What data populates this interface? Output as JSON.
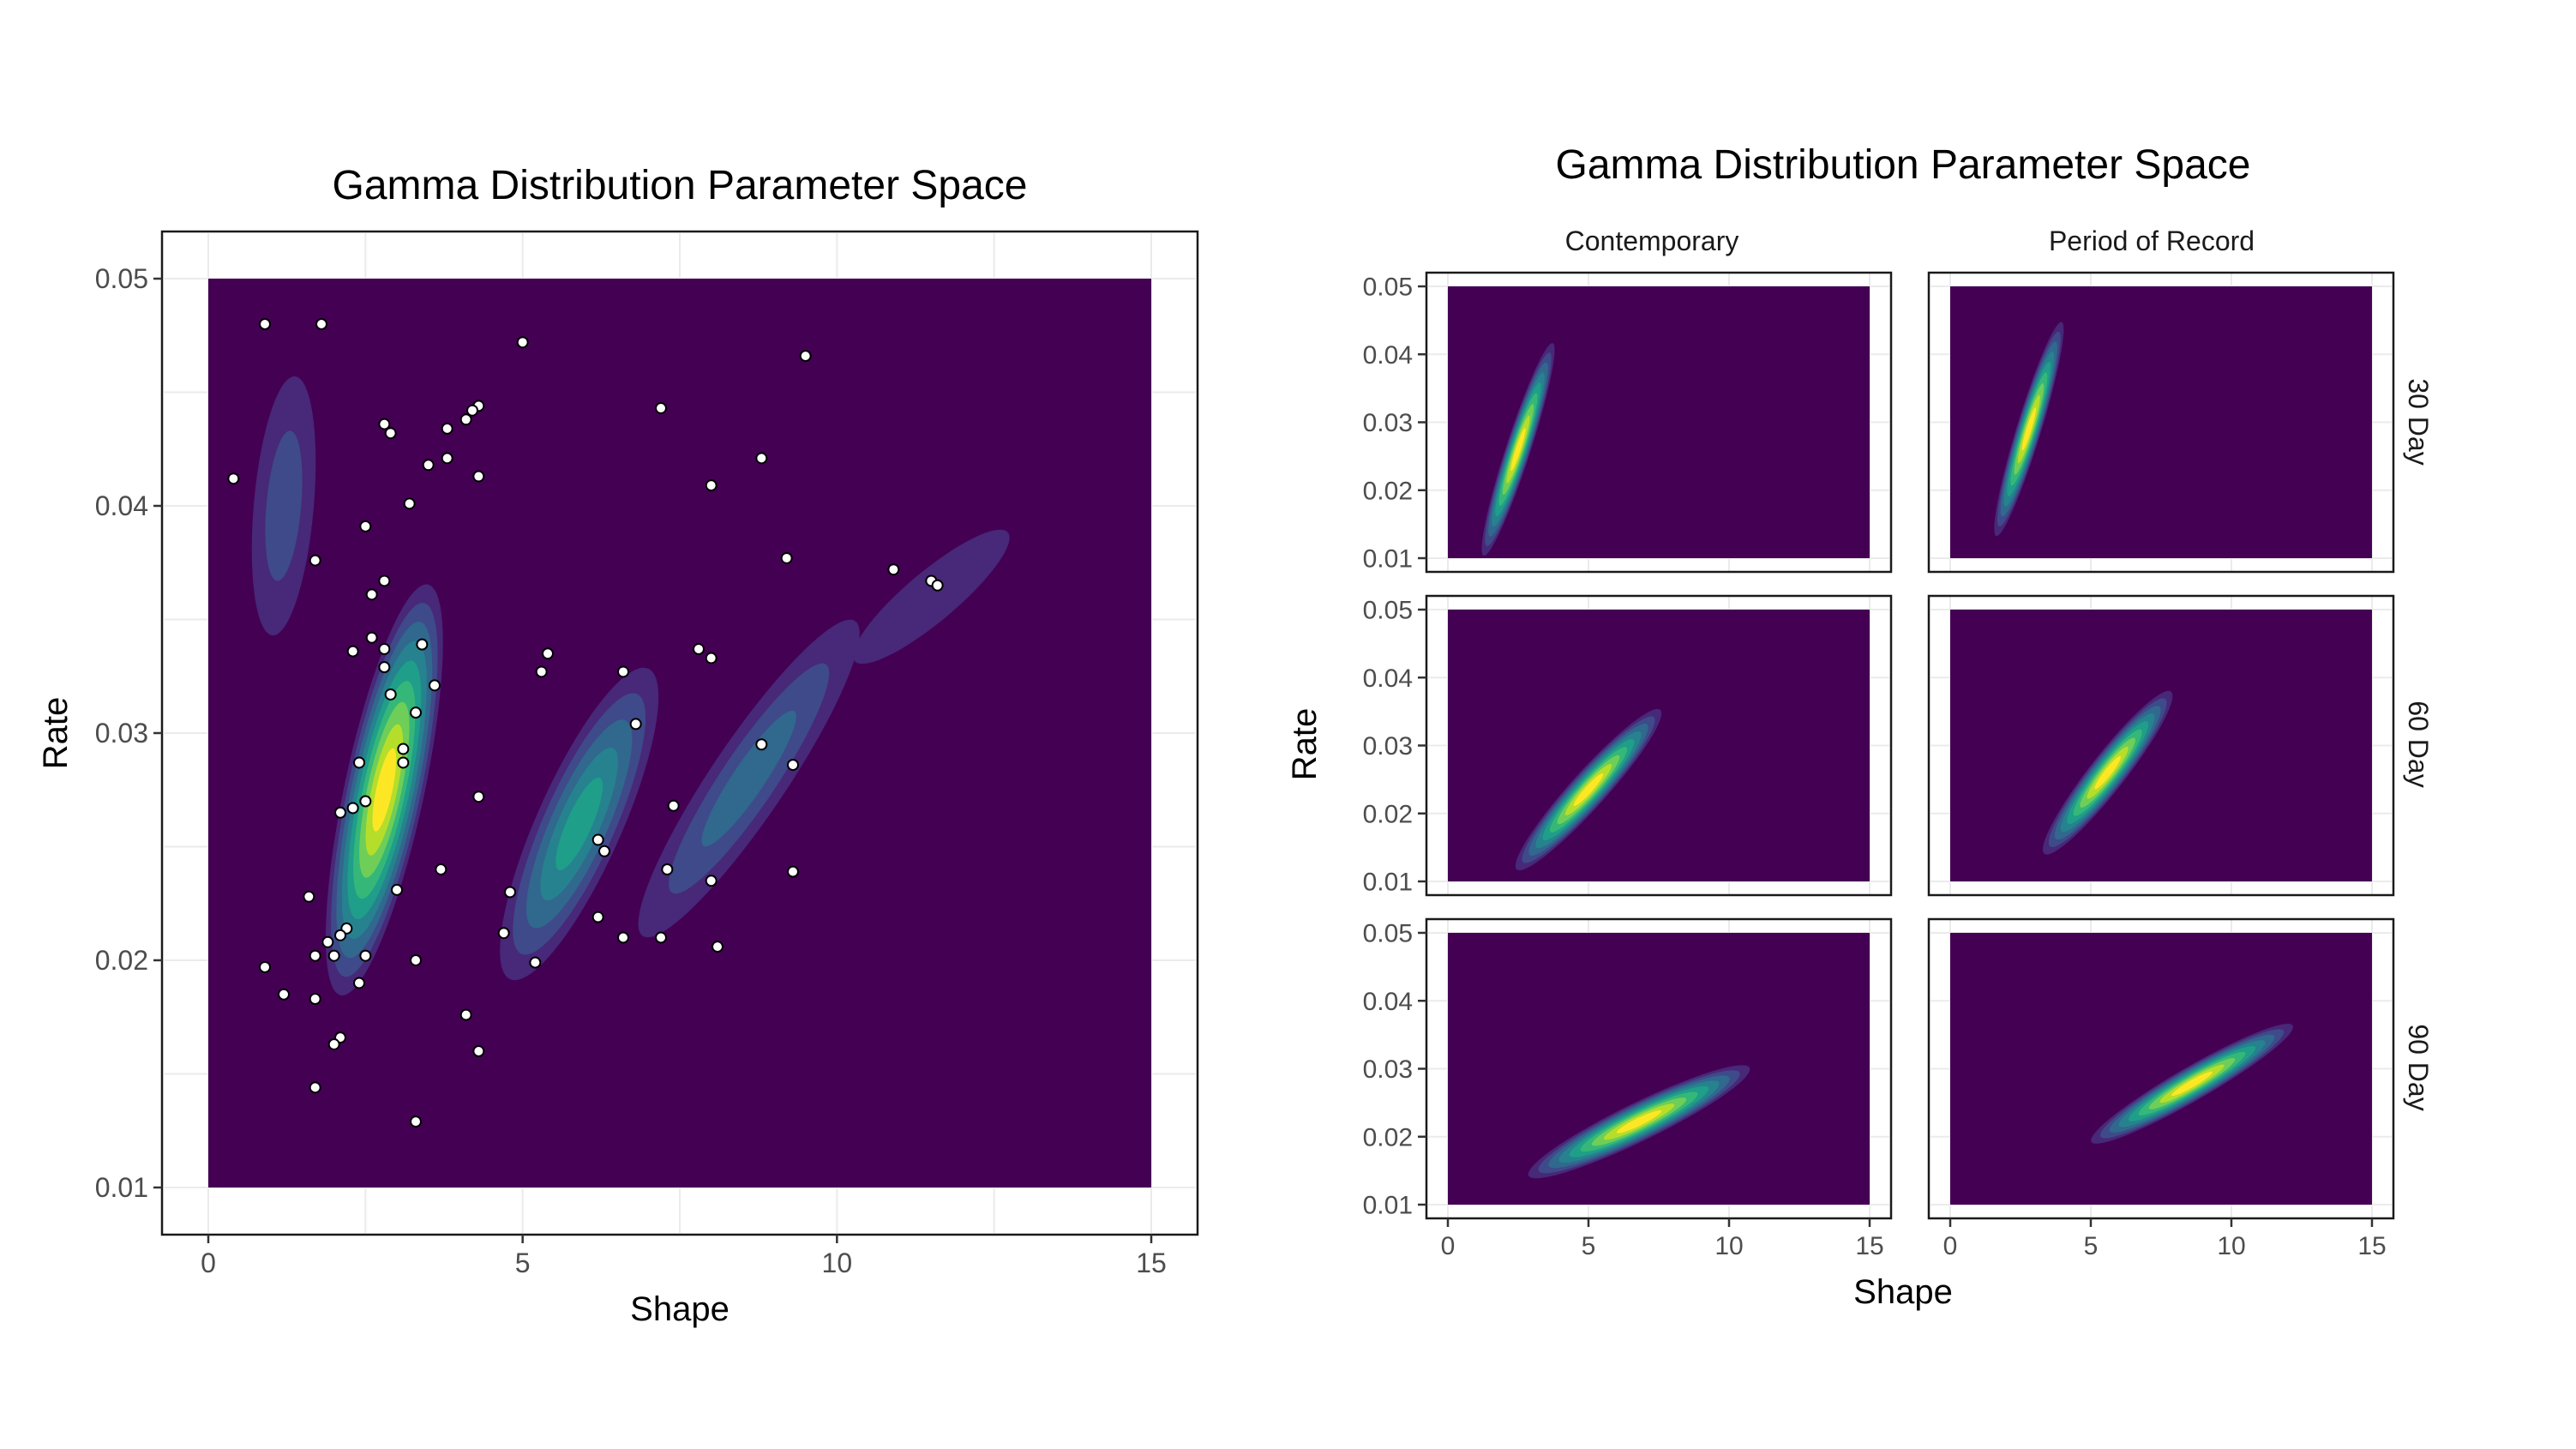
{
  "colors": {
    "background": "#ffffff",
    "panel_border": "#1a1a1a",
    "grid": "#ebebeb",
    "tick_text": "#4d4d4d",
    "point_fill": "#ffffff",
    "point_stroke": "#000000",
    "viridis": [
      "#440154",
      "#482878",
      "#3e4a89",
      "#31688e",
      "#26828e",
      "#1f9e89",
      "#35b779",
      "#6ece58",
      "#b5de2b",
      "#fde725"
    ]
  },
  "chart_data": [
    {
      "type": "density-contour-scatter",
      "title": "Gamma Distribution Parameter Space",
      "xlabel": "Shape",
      "ylabel": "Rate",
      "xlim": [
        0,
        15
      ],
      "ylim": [
        0.01,
        0.05
      ],
      "xticks": [
        0,
        5,
        10,
        15
      ],
      "yticks": [
        0.01,
        0.02,
        0.03,
        0.04,
        0.05
      ],
      "ytick_labels": [
        "0.01",
        "0.02",
        "0.03",
        "0.04",
        "0.05"
      ],
      "grid": true,
      "legend": "none",
      "density_modes": [
        {
          "shape": 2.8,
          "rate": 0.0275,
          "angle_deg": 78,
          "major": 0.42,
          "minor": 0.08,
          "weight": 1.0
        },
        {
          "shape": 5.9,
          "rate": 0.026,
          "angle_deg": 66,
          "major": 0.34,
          "minor": 0.085,
          "weight": 0.58
        },
        {
          "shape": 8.6,
          "rate": 0.028,
          "angle_deg": 56,
          "major": 0.38,
          "minor": 0.075,
          "weight": 0.3
        },
        {
          "shape": 1.2,
          "rate": 0.04,
          "angle_deg": 85,
          "major": 0.26,
          "minor": 0.06,
          "weight": 0.18
        },
        {
          "shape": 11.5,
          "rate": 0.036,
          "angle_deg": 40,
          "major": 0.2,
          "minor": 0.05,
          "weight": 0.12
        }
      ],
      "points": [
        [
          0.9,
          0.048
        ],
        [
          1.8,
          0.048
        ],
        [
          5.0,
          0.0472
        ],
        [
          9.5,
          0.0466
        ],
        [
          0.4,
          0.0412
        ],
        [
          2.8,
          0.0436
        ],
        [
          2.9,
          0.0432
        ],
        [
          3.8,
          0.0434
        ],
        [
          4.1,
          0.0438
        ],
        [
          4.3,
          0.0444
        ],
        [
          4.2,
          0.0442
        ],
        [
          7.2,
          0.0443
        ],
        [
          3.5,
          0.0418
        ],
        [
          3.8,
          0.0421
        ],
        [
          4.3,
          0.0413
        ],
        [
          8.8,
          0.0421
        ],
        [
          3.2,
          0.0401
        ],
        [
          2.5,
          0.0391
        ],
        [
          8.0,
          0.0409
        ],
        [
          1.7,
          0.0376
        ],
        [
          9.2,
          0.0377
        ],
        [
          10.9,
          0.0372
        ],
        [
          11.5,
          0.0367
        ],
        [
          11.6,
          0.0365
        ],
        [
          2.8,
          0.0367
        ],
        [
          2.6,
          0.0361
        ],
        [
          2.6,
          0.0342
        ],
        [
          2.3,
          0.0336
        ],
        [
          2.8,
          0.0337
        ],
        [
          3.4,
          0.0339
        ],
        [
          5.4,
          0.0335
        ],
        [
          7.8,
          0.0337
        ],
        [
          8.0,
          0.0333
        ],
        [
          2.8,
          0.0329
        ],
        [
          5.3,
          0.0327
        ],
        [
          6.6,
          0.0327
        ],
        [
          3.6,
          0.0321
        ],
        [
          2.9,
          0.0317
        ],
        [
          3.3,
          0.0309
        ],
        [
          6.8,
          0.0304
        ],
        [
          3.1,
          0.0293
        ],
        [
          8.8,
          0.0295
        ],
        [
          2.4,
          0.0287
        ],
        [
          3.1,
          0.0287
        ],
        [
          9.3,
          0.0286
        ],
        [
          4.3,
          0.0272
        ],
        [
          7.4,
          0.0268
        ],
        [
          2.5,
          0.027
        ],
        [
          2.3,
          0.0267
        ],
        [
          2.1,
          0.0265
        ],
        [
          6.2,
          0.0253
        ],
        [
          6.3,
          0.0248
        ],
        [
          3.7,
          0.024
        ],
        [
          7.3,
          0.024
        ],
        [
          9.3,
          0.0239
        ],
        [
          8.0,
          0.0235
        ],
        [
          3.0,
          0.0231
        ],
        [
          1.6,
          0.0228
        ],
        [
          4.8,
          0.023
        ],
        [
          6.2,
          0.0219
        ],
        [
          2.2,
          0.0214
        ],
        [
          2.1,
          0.0211
        ],
        [
          4.7,
          0.0212
        ],
        [
          6.6,
          0.021
        ],
        [
          7.2,
          0.021
        ],
        [
          1.9,
          0.0208
        ],
        [
          8.1,
          0.0206
        ],
        [
          1.7,
          0.0202
        ],
        [
          2.0,
          0.0202
        ],
        [
          2.5,
          0.0202
        ],
        [
          3.3,
          0.02
        ],
        [
          5.2,
          0.0199
        ],
        [
          0.9,
          0.0197
        ],
        [
          2.4,
          0.019
        ],
        [
          1.2,
          0.0185
        ],
        [
          1.7,
          0.0183
        ],
        [
          4.1,
          0.0176
        ],
        [
          2.1,
          0.0166
        ],
        [
          2.0,
          0.0163
        ],
        [
          4.3,
          0.016
        ],
        [
          1.7,
          0.0144
        ],
        [
          3.3,
          0.0129
        ]
      ]
    },
    {
      "type": "faceted-density-contour",
      "title": "Gamma Distribution Parameter Space",
      "xlabel": "Shape",
      "ylabel": "Rate",
      "xlim": [
        0,
        15
      ],
      "ylim": [
        0.01,
        0.05
      ],
      "xticks": [
        0,
        5,
        10,
        15
      ],
      "yticks": [
        0.01,
        0.02,
        0.03,
        0.04,
        0.05
      ],
      "ytick_labels": [
        "0.01",
        "0.02",
        "0.03",
        "0.04",
        "0.05"
      ],
      "grid": true,
      "legend": "none",
      "columns": [
        "Contemporary",
        "Period of Record"
      ],
      "rows": [
        "30 Day",
        "60 Day",
        "90 Day"
      ],
      "panels": [
        {
          "column": "Contemporary",
          "row": "30 Day",
          "shape": 2.5,
          "rate": 0.026,
          "angle_deg": 72,
          "major": 0.5,
          "minor": 0.055
        },
        {
          "column": "Period of Record",
          "row": "30 Day",
          "shape": 2.8,
          "rate": 0.029,
          "angle_deg": 73,
          "major": 0.5,
          "minor": 0.055
        },
        {
          "column": "Contemporary",
          "row": "60 Day",
          "shape": 5.0,
          "rate": 0.0235,
          "angle_deg": 48,
          "major": 0.48,
          "minor": 0.08
        },
        {
          "column": "Period of Record",
          "row": "60 Day",
          "shape": 5.6,
          "rate": 0.026,
          "angle_deg": 52,
          "major": 0.46,
          "minor": 0.08
        },
        {
          "column": "Contemporary",
          "row": "90 Day",
          "shape": 6.8,
          "rate": 0.0222,
          "angle_deg": 26,
          "major": 0.55,
          "minor": 0.085
        },
        {
          "column": "Period of Record",
          "row": "90 Day",
          "shape": 8.6,
          "rate": 0.0278,
          "angle_deg": 30,
          "major": 0.52,
          "minor": 0.075
        }
      ]
    }
  ]
}
